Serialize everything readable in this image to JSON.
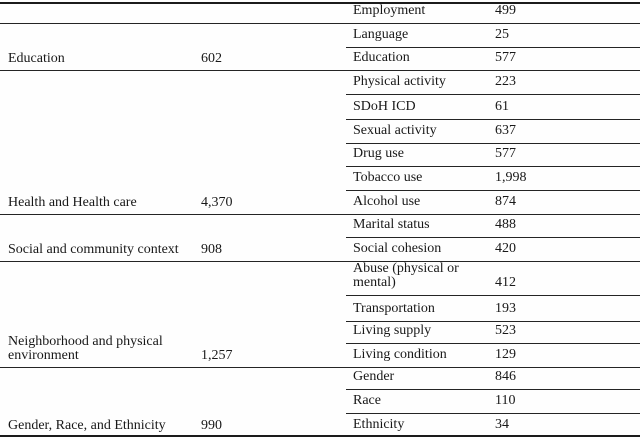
{
  "table": {
    "groups": [
      {
        "category": "",
        "count": "",
        "rows": [
          {
            "label": "Employment",
            "value": "499"
          }
        ]
      },
      {
        "category": "Education",
        "count": "602",
        "rows": [
          {
            "label": "Language",
            "value": "25"
          },
          {
            "label": "Education",
            "value": "577"
          }
        ]
      },
      {
        "category": "Health and Health care",
        "count": "4,370",
        "rows": [
          {
            "label": "Physical activity",
            "value": "223"
          },
          {
            "label": "SDoH ICD",
            "value": "61"
          },
          {
            "label": "Sexual activity",
            "value": "637"
          },
          {
            "label": "Drug use",
            "value": "577"
          },
          {
            "label": "Tobacco use",
            "value": "1,998"
          },
          {
            "label": "Alcohol use",
            "value": "874"
          }
        ]
      },
      {
        "category": "Social and community context",
        "count": "908",
        "rows": [
          {
            "label": "Marital status",
            "value": "488"
          },
          {
            "label": "Social cohesion",
            "value": "420"
          }
        ]
      },
      {
        "category": "Neighborhood and physical environment",
        "count": "1,257",
        "rows": [
          {
            "label": "Abuse (physical or mental)",
            "value": "412"
          },
          {
            "label": "Transportation",
            "value": "193"
          },
          {
            "label": "Living supply",
            "value": "523"
          },
          {
            "label": "Living condition",
            "value": "129"
          }
        ]
      },
      {
        "category": "Gender, Race, and Ethnicity",
        "count": "990",
        "rows": [
          {
            "label": "Gender",
            "value": "846"
          },
          {
            "label": "Race",
            "value": "110"
          },
          {
            "label": "Ethnicity",
            "value": "34"
          }
        ]
      }
    ]
  }
}
